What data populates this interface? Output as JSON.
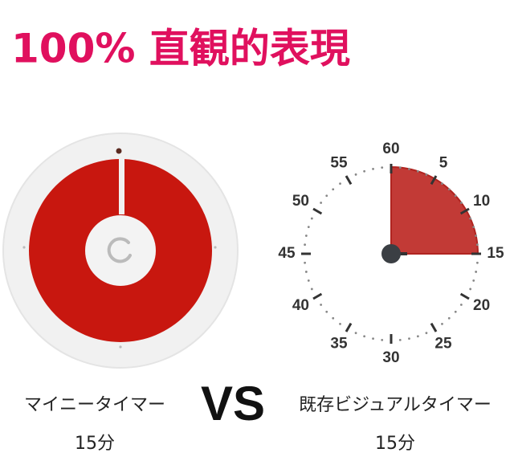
{
  "title": "100% 直観的表現",
  "left": {
    "label": "マイニータイマー",
    "duration": "15分"
  },
  "vs": "VS",
  "right": {
    "label": "既存ビジュアルタイマー",
    "duration": "15分",
    "dial": [
      "60",
      "5",
      "10",
      "15",
      "20",
      "25",
      "30",
      "35",
      "40",
      "45",
      "50",
      "55"
    ]
  }
}
